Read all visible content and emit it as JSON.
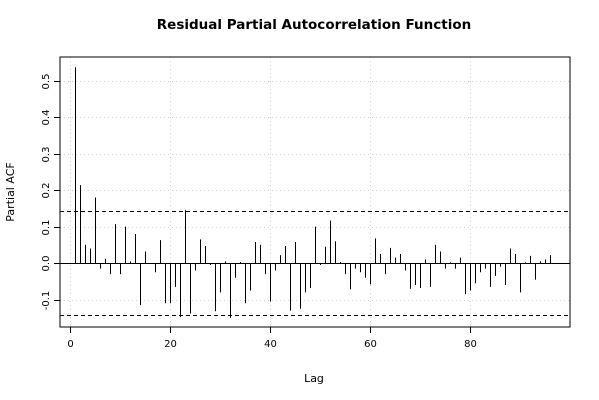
{
  "chart_data": {
    "type": "bar",
    "title": "Residual Partial Autocorrelation Function",
    "xlabel": "Lag",
    "ylabel": "Partial ACF",
    "xlim": [
      -1.9,
      100
    ],
    "ylim": [
      -0.175,
      0.565
    ],
    "x_ticks": [
      0,
      20,
      40,
      60,
      80
    ],
    "y_ticks": [
      -0.1,
      0.0,
      0.1,
      0.2,
      0.3,
      0.4,
      0.5
    ],
    "grid": true,
    "confidence_bound": 0.142,
    "series": [
      {
        "x": [
          1,
          2,
          3,
          4,
          5,
          6,
          7,
          8,
          9,
          10,
          11,
          12,
          13,
          14,
          15,
          16,
          17,
          18,
          19,
          20,
          21,
          22,
          23,
          24,
          25,
          26,
          27,
          28,
          29,
          30,
          31,
          32,
          33,
          34,
          35,
          36,
          37,
          38,
          39,
          40,
          41,
          42,
          43,
          44,
          45,
          46,
          47,
          48,
          49,
          50,
          51,
          52,
          53,
          54,
          55,
          56,
          57,
          58,
          59,
          60,
          61,
          62,
          63,
          64,
          65,
          66,
          67,
          68,
          69,
          70,
          71,
          72,
          73,
          74,
          75,
          76,
          77,
          78,
          79,
          80,
          81,
          82,
          83,
          84,
          85,
          86,
          87,
          88,
          89,
          90,
          91,
          92,
          93,
          94,
          95,
          96
        ],
        "values": [
          0.537,
          0.214,
          0.05,
          0.04,
          0.18,
          -0.015,
          0.012,
          -0.03,
          0.107,
          -0.03,
          0.1,
          0.005,
          0.08,
          -0.115,
          0.032,
          -0.002,
          -0.025,
          0.063,
          -0.11,
          -0.11,
          -0.065,
          -0.148,
          0.145,
          -0.138,
          -0.02,
          0.065,
          0.047,
          -0.005,
          -0.132,
          -0.08,
          0.005,
          -0.15,
          -0.04,
          0.003,
          -0.11,
          -0.075,
          0.058,
          0.05,
          -0.03,
          -0.105,
          -0.02,
          0.022,
          0.047,
          -0.13,
          0.058,
          -0.125,
          -0.08,
          -0.068,
          0.1,
          -0.005,
          0.045,
          0.117,
          0.06,
          0.003,
          -0.03,
          -0.072,
          -0.015,
          -0.025,
          -0.04,
          -0.058,
          0.068,
          0.025,
          -0.03,
          0.042,
          0.015,
          0.025,
          -0.02,
          -0.07,
          -0.06,
          -0.068,
          0.01,
          -0.065,
          0.05,
          0.032,
          -0.015,
          0.002,
          -0.015,
          0.015,
          -0.085,
          -0.075,
          -0.055,
          -0.025,
          -0.015,
          -0.065,
          -0.035,
          -0.01,
          -0.06,
          0.04,
          0.025,
          -0.08,
          0.002,
          0.02,
          -0.045,
          0.005,
          0.01,
          0.022
        ]
      }
    ]
  }
}
